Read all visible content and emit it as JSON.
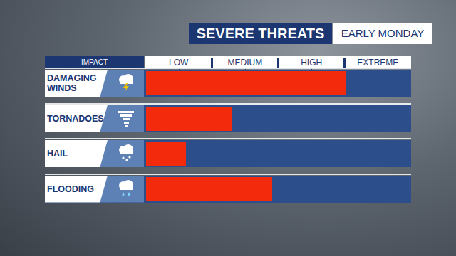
{
  "chart_data": {
    "type": "bar",
    "orientation": "horizontal",
    "title": "SEVERE THREATS",
    "subtitle": "EARLY MONDAY",
    "ylabel": "IMPACT",
    "categories": [
      "DAMAGING WINDS",
      "TORNADOES",
      "HAIL",
      "FLOODING"
    ],
    "values": [
      3,
      1.3,
      0.6,
      1.9
    ],
    "color": "#f42a0c",
    "xlim": [
      0,
      4
    ],
    "xticks": [
      {
        "value": 0.5,
        "label": "LOW"
      },
      {
        "value": 1.5,
        "label": "MEDIUM"
      },
      {
        "value": 2.5,
        "label": "HIGH"
      },
      {
        "value": 3.5,
        "label": "EXTREME"
      }
    ],
    "grid": false
  }
}
